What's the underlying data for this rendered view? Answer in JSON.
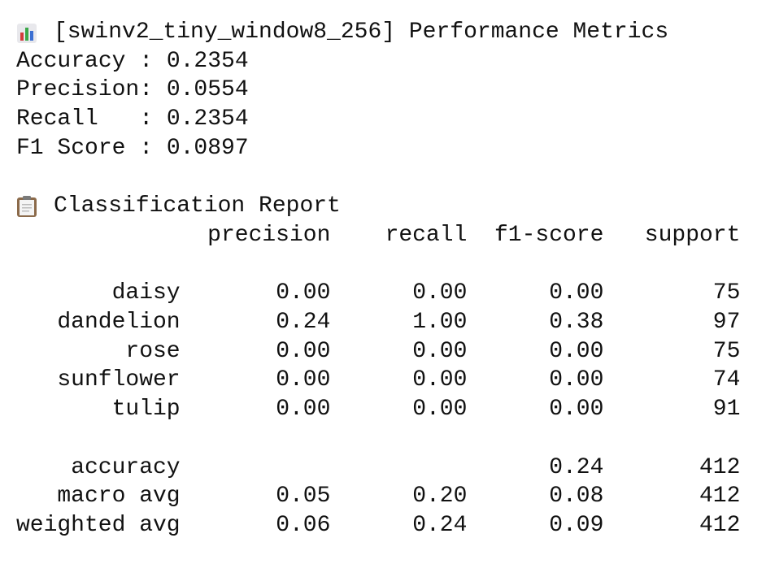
{
  "title": "[swinv2_tiny_window8_256] Performance Metrics",
  "metrics": [
    "Accuracy : 0.2354",
    "Precision: 0.0554",
    "Recall   : 0.2354",
    "F1 Score : 0.0897"
  ],
  "report": {
    "heading": "Classification Report",
    "columns": [
      "precision",
      "recall",
      "f1-score",
      "support"
    ],
    "rows": [
      {
        "label": "daisy",
        "values": [
          "0.00",
          "0.00",
          "0.00",
          "75"
        ]
      },
      {
        "label": "dandelion",
        "values": [
          "0.24",
          "1.00",
          "0.38",
          "97"
        ]
      },
      {
        "label": "rose",
        "values": [
          "0.00",
          "0.00",
          "0.00",
          "75"
        ]
      },
      {
        "label": "sunflower",
        "values": [
          "0.00",
          "0.00",
          "0.00",
          "74"
        ]
      },
      {
        "label": "tulip",
        "values": [
          "0.00",
          "0.00",
          "0.00",
          "91"
        ]
      }
    ],
    "summary": [
      {
        "label": "accuracy",
        "values": [
          null,
          null,
          "0.24",
          "412"
        ]
      },
      {
        "label": "macro avg",
        "values": [
          "0.05",
          "0.20",
          "0.08",
          "412"
        ]
      },
      {
        "label": "weighted avg",
        "values": [
          "0.06",
          "0.24",
          "0.09",
          "412"
        ]
      }
    ]
  }
}
